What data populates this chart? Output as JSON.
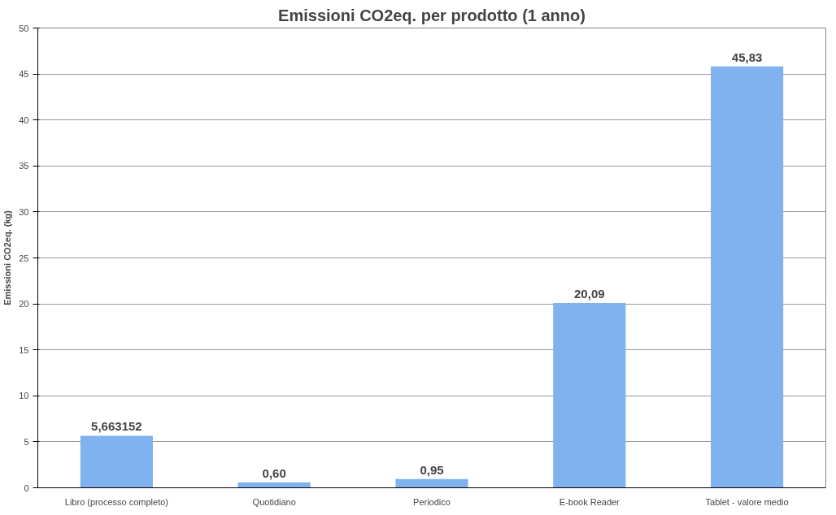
{
  "chart_data": {
    "type": "bar",
    "title": "Emissioni CO2eq. per prodotto (1 anno)",
    "ylabel": "Emissioni CO2eq. (kg)",
    "categories": [
      "Libro (processo completo)",
      "Quotidiano",
      "Periodico",
      "E-book Reader",
      "Tablet - valore medio"
    ],
    "values": [
      5.663152,
      0.6,
      0.95,
      20.09,
      45.83
    ],
    "value_labels": [
      "5,663152",
      "0,60",
      "0,95",
      "20,09",
      "45,83"
    ],
    "color": "#7fb2ee",
    "ylim": [
      0,
      50
    ],
    "yticks": [
      0,
      5,
      10,
      15,
      20,
      25,
      30,
      35,
      40,
      45,
      50
    ],
    "grid": "y"
  }
}
